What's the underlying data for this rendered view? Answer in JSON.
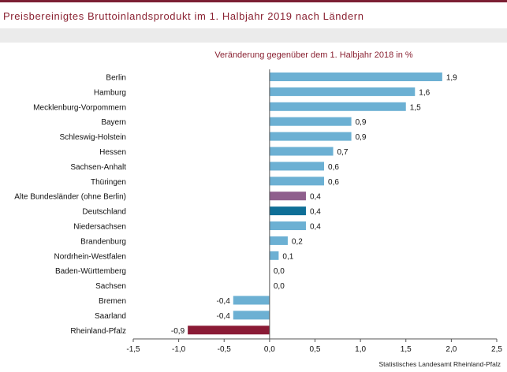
{
  "page": {
    "title": "Preisbereinigtes Bruttoinlandsprodukt im 1. Halbjahr 2019 nach Ländern",
    "source": "Statistisches Landesamt Rheinland-Pfalz"
  },
  "colors": {
    "title": "#8a2232",
    "bar_default": "#6cb0d3",
    "bar_alte_bundeslaender": "#8f5f8d",
    "bar_deutschland": "#0f6f97",
    "bar_rheinland_pfalz": "#8a1a35",
    "axis": "#555555"
  },
  "chart_data": {
    "type": "bar",
    "orientation": "horizontal",
    "title": "Veränderung gegenüber dem 1. Halbjahr 2018 in %",
    "xlabel": "",
    "ylabel": "",
    "xlim": [
      -1.5,
      2.5
    ],
    "x_ticks": [
      -1.5,
      -1.0,
      -0.5,
      0.0,
      0.5,
      1.0,
      1.5,
      2.0,
      2.5
    ],
    "x_tick_labels": [
      "-1,5",
      "-1,0",
      "-0,5",
      "0,0",
      "0,5",
      "1,0",
      "1,5",
      "2,0",
      "2,5"
    ],
    "grid": false,
    "legend": "none",
    "categories": [
      "Berlin",
      "Hamburg",
      "Mecklenburg-Vorpommern",
      "Bayern",
      "Schleswig-Holstein",
      "Hessen",
      "Sachsen-Anhalt",
      "Thüringen",
      "Alte Bundesländer (ohne Berlin)",
      "Deutschland",
      "Niedersachsen",
      "Brandenburg",
      "Nordrhein-Westfalen",
      "Baden-Württemberg",
      "Sachsen",
      "Bremen",
      "Saarland",
      "Rheinland-Pfalz"
    ],
    "values": [
      1.9,
      1.6,
      1.5,
      0.9,
      0.9,
      0.7,
      0.6,
      0.6,
      0.4,
      0.4,
      0.4,
      0.2,
      0.1,
      0.0,
      0.0,
      -0.4,
      -0.4,
      -0.9
    ],
    "value_labels": [
      "1,9",
      "1,6",
      "1,5",
      "0,9",
      "0,9",
      "0,7",
      "0,6",
      "0,6",
      "0,4",
      "0,4",
      "0,4",
      "0,2",
      "0,1",
      "0,0",
      "0,0",
      "-0,4",
      "-0,4",
      "-0,9"
    ],
    "highlight": {
      "Alte Bundesländer (ohne Berlin)": "bar_alte_bundeslaender",
      "Deutschland": "bar_deutschland",
      "Rheinland-Pfalz": "bar_rheinland_pfalz"
    }
  }
}
